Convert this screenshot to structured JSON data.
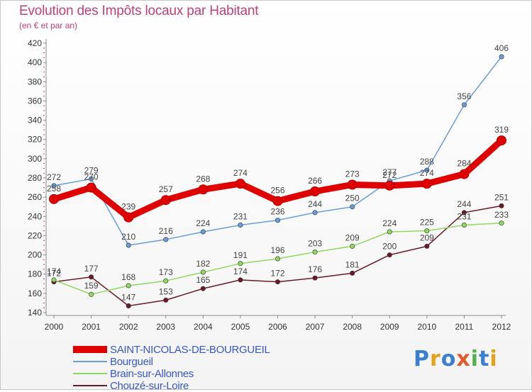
{
  "header": {
    "title": "Evolution des Impôts locaux par Habitant",
    "subtitle": "(en € et par an)"
  },
  "brand": {
    "letters": [
      {
        "ch": "P",
        "color": "#3b7fd0"
      },
      {
        "ch": "r",
        "color": "#e3a21a"
      },
      {
        "ch": "o",
        "color": "#3b7fd0"
      },
      {
        "ch": "x",
        "color": "#e05a2a"
      },
      {
        "ch": "i",
        "color": "#4fb04a"
      },
      {
        "ch": "t",
        "color": "#3b7fd0"
      },
      {
        "ch": "i",
        "color": "#e3a21a"
      }
    ]
  },
  "chart_data": {
    "type": "line",
    "title": "Evolution des Impôts locaux par Habitant",
    "subtitle": "(en € et par an)",
    "xlabel": "",
    "ylabel": "",
    "ylim": [
      140,
      420
    ],
    "yticks": [
      140,
      160,
      180,
      200,
      220,
      240,
      260,
      280,
      300,
      320,
      340,
      360,
      380,
      400,
      420
    ],
    "categories": [
      "2000",
      "2001",
      "2002",
      "2003",
      "2004",
      "2005",
      "2006",
      "2007",
      "2008",
      "2009",
      "2010",
      "2011",
      "2012"
    ],
    "grid": false,
    "legend_position": "bottom-left",
    "series": [
      {
        "name": "Chouzé-sur-Loire",
        "color": "#6b1a28",
        "line": "thin",
        "values": [
          172,
          177,
          147,
          153,
          165,
          174,
          172,
          176,
          181,
          200,
          209,
          244,
          251
        ]
      },
      {
        "name": "Brain-sur-Allonnes",
        "color": "#90d860",
        "line": "thin",
        "values": [
          174,
          159,
          168,
          173,
          182,
          191,
          196,
          203,
          209,
          224,
          225,
          231,
          233
        ]
      },
      {
        "name": "Bourgueil",
        "color": "#6a9ed8",
        "line": "thin",
        "values": [
          272,
          279,
          210,
          216,
          224,
          231,
          236,
          244,
          250,
          277,
          288,
          356,
          406
        ]
      },
      {
        "name": "SAINT-NICOLAS-DE-BOURGUEIL",
        "color": "#e00000",
        "line": "thick",
        "values": [
          258,
          270,
          239,
          257,
          268,
          274,
          256,
          266,
          273,
          272,
          274,
          284,
          319
        ]
      }
    ],
    "legend_order": [
      "SAINT-NICOLAS-DE-BOURGUEIL",
      "Bourgueil",
      "Brain-sur-Allonnes",
      "Chouzé-sur-Loire"
    ]
  }
}
